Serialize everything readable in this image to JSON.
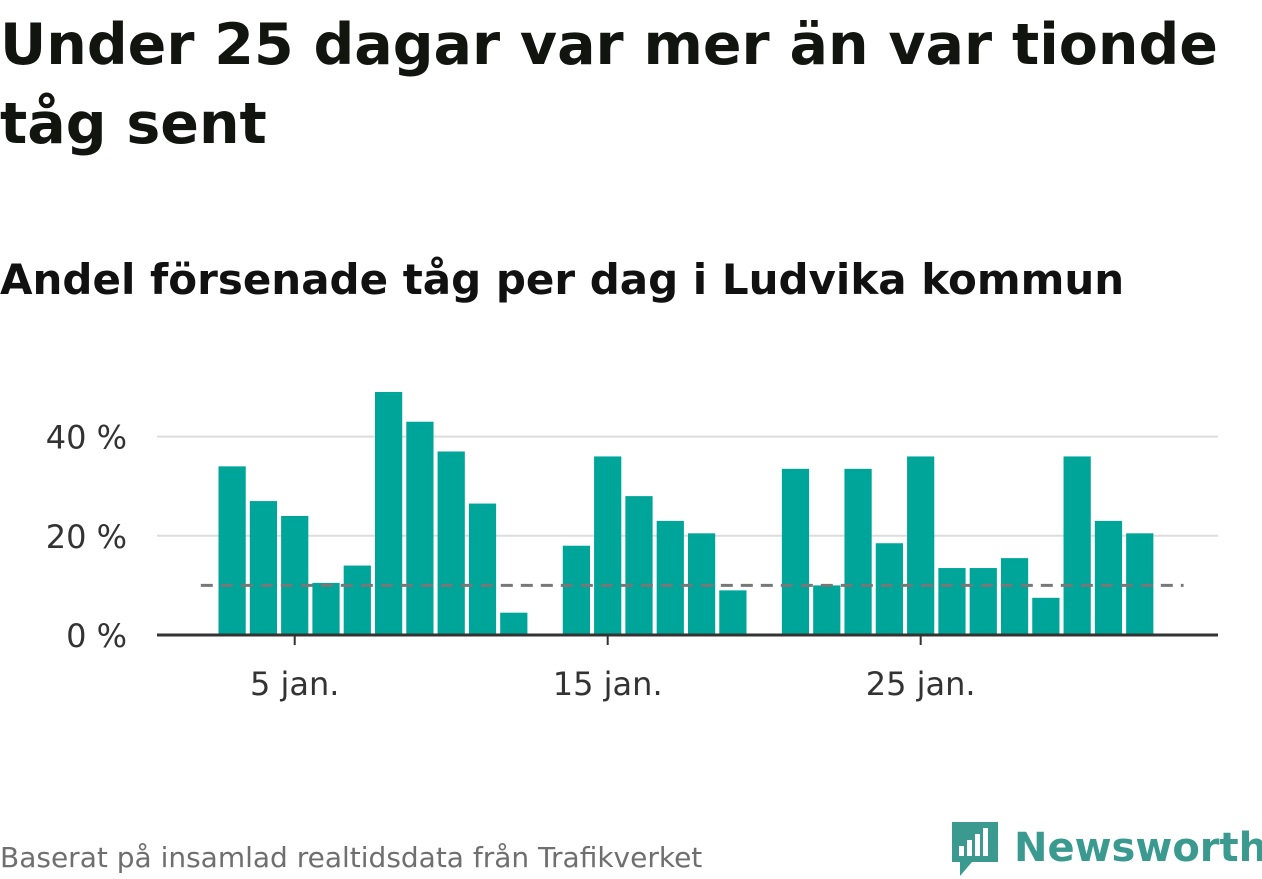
{
  "title": "Under 25 dagar var mer än var tionde tåg sent",
  "subtitle": "Andel försenade tåg per dag i Ludvika kommun",
  "source": "Baserat på insamlad realtidsdata från Trafikverket",
  "logo": {
    "text": "Newsworthy",
    "icon": "newsworthy-chat-bars-icon"
  },
  "colors": {
    "bar": "#00a599",
    "grid": "#dddddd",
    "axis": "#333333",
    "reference": "#777777",
    "brand": "#3a9a8f"
  },
  "chart_data": {
    "type": "bar",
    "title": "Andel försenade tåg per dag i Ludvika kommun",
    "x": [
      3,
      4,
      5,
      6,
      7,
      8,
      9,
      10,
      11,
      12,
      13,
      14,
      15,
      16,
      17,
      18,
      19,
      20,
      21,
      22,
      23,
      24,
      25,
      26,
      27,
      28,
      29,
      30,
      31,
      32,
      33
    ],
    "values": [
      34,
      27,
      24,
      10.5,
      14,
      49,
      43,
      37,
      26.5,
      4.5,
      null,
      18,
      36,
      28,
      23,
      20.5,
      9,
      null,
      33.5,
      10,
      33.5,
      18.5,
      36,
      13.5,
      13.5,
      15.5,
      7.5,
      36,
      23,
      20.5,
      null
    ],
    "x_ticks": [
      5,
      15,
      25
    ],
    "x_tick_labels": [
      "5 jan.",
      "15 jan.",
      "25 jan."
    ],
    "y_ticks": [
      0,
      20,
      40
    ],
    "y_tick_labels": [
      "0 %",
      "20 %",
      "40 %"
    ],
    "ylim": [
      0,
      50
    ],
    "xlim": [
      0.6,
      34.5
    ],
    "reference_line": 10,
    "grid": true,
    "legend": "none"
  }
}
